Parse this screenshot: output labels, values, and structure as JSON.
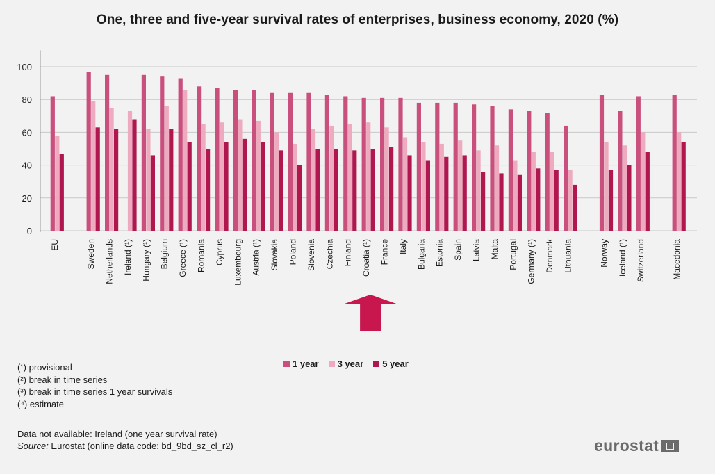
{
  "chart_data": {
    "type": "bar",
    "title": "One, three and five-year survival rates of enterprises, business economy, 2020 (%)",
    "ylim": [
      0,
      110
    ],
    "yticks": [
      0,
      20,
      40,
      60,
      80,
      100
    ],
    "grid": true,
    "legend_position": "bottom",
    "groups": [
      [
        "EU"
      ],
      [
        "Sweden",
        "Netherlands",
        "Ireland (¹)",
        "Hungary (¹)",
        "Belgium",
        "Greece (¹)",
        "Romania",
        "Cyprus",
        "Luxembourg",
        "Austria (¹)",
        "Slovakia",
        "Poland",
        "Slovenia",
        "Czechia",
        "Finland",
        "Croatia (¹)",
        "France",
        "Italy",
        "Bulgaria",
        "Estonia",
        "Spain",
        "Latvia",
        "Malta",
        "Portugal",
        "Germany (¹)",
        "Denmark",
        "Lithuania"
      ],
      [
        "Norway",
        "Iceland (¹)",
        "Switzerland"
      ],
      [
        "Macedonia"
      ]
    ],
    "categories": [
      "EU",
      "Sweden",
      "Netherlands",
      "Ireland (¹)",
      "Hungary (¹)",
      "Belgium",
      "Greece (¹)",
      "Romania",
      "Cyprus",
      "Luxembourg",
      "Austria (¹)",
      "Slovakia",
      "Poland",
      "Slovenia",
      "Czechia",
      "Finland",
      "Croatia (¹)",
      "France",
      "Italy",
      "Bulgaria",
      "Estonia",
      "Spain",
      "Latvia",
      "Malta",
      "Portugal",
      "Germany (¹)",
      "Denmark",
      "Lithuania",
      "Norway",
      "Iceland (¹)",
      "Switzerland",
      "Macedonia"
    ],
    "series": [
      {
        "name": "1 year",
        "color": "#c94f7c",
        "values": [
          82,
          97,
          95,
          null,
          95,
          94,
          93,
          88,
          87,
          86,
          86,
          84,
          84,
          84,
          83,
          82,
          81,
          81,
          81,
          78,
          78,
          78,
          77,
          76,
          74,
          73,
          72,
          64,
          83,
          73,
          82,
          83
        ]
      },
      {
        "name": "3 year",
        "color": "#eeaabf",
        "values": [
          58,
          79,
          75,
          73,
          62,
          76,
          86,
          65,
          66,
          68,
          67,
          60,
          53,
          62,
          64,
          65,
          66,
          63,
          57,
          54,
          53,
          55,
          49,
          52,
          43,
          48,
          48,
          37,
          54,
          52,
          60,
          60
        ]
      },
      {
        "name": "5 year",
        "color": "#b0174f",
        "values": [
          47,
          63,
          62,
          68,
          46,
          62,
          54,
          50,
          54,
          56,
          54,
          49,
          40,
          50,
          50,
          49,
          50,
          51,
          46,
          43,
          45,
          46,
          36,
          35,
          34,
          38,
          37,
          28,
          37,
          40,
          48,
          54
        ]
      }
    ],
    "highlight": "Croatia (¹)",
    "highlight_color": "#c8174f"
  },
  "notes": [
    "(¹) provisional",
    "(²) break in time series",
    "(³) break in time series 1 year survivals",
    "(⁴) estimate"
  ],
  "footer": {
    "not_available": "Data not available: Ireland (one year survival rate)",
    "source_label": "Source:",
    "source_text": " Eurostat (online data code: bd_9bd_sz_cl_r2)"
  },
  "logo": {
    "text": "eurostat"
  }
}
